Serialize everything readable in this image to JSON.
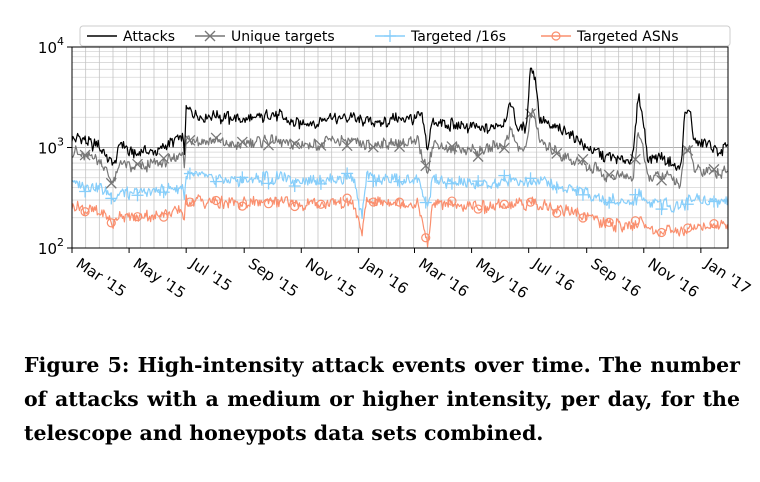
{
  "chart_data": {
    "type": "line",
    "yscale": "log",
    "ylim": [
      100,
      10000
    ],
    "x_range_days": [
      0,
      701
    ],
    "grid": true,
    "yticks": [
      {
        "value": 100,
        "base": "10",
        "exp": "2"
      },
      {
        "value": 1000,
        "base": "10",
        "exp": "3"
      },
      {
        "value": 10000,
        "base": "10",
        "exp": "4"
      }
    ],
    "xticks": [
      {
        "label": "Mar '15",
        "day": 0
      },
      {
        "label": "May '15",
        "day": 61
      },
      {
        "label": "Jul '15",
        "day": 122
      },
      {
        "label": "Sep '15",
        "day": 184
      },
      {
        "label": "Nov '15",
        "day": 245
      },
      {
        "label": "Jan '16",
        "day": 306
      },
      {
        "label": "Mar '16",
        "day": 366
      },
      {
        "label": "May '16",
        "day": 427
      },
      {
        "label": "Jul '16",
        "day": 488
      },
      {
        "label": "Sep '16",
        "day": 550
      },
      {
        "label": "Nov '16",
        "day": 611
      },
      {
        "label": "Jan '17",
        "day": 672
      }
    ],
    "legend_position": "top",
    "series": [
      {
        "name": "Attacks",
        "color": "#000000",
        "marker": "none",
        "points": [
          [
            0,
            1300
          ],
          [
            15,
            1150
          ],
          [
            30,
            1000
          ],
          [
            45,
            650
          ],
          [
            52,
            1100
          ],
          [
            60,
            900
          ],
          [
            75,
            900
          ],
          [
            90,
            950
          ],
          [
            105,
            1100
          ],
          [
            118,
            1300
          ],
          [
            120,
            900
          ],
          [
            122,
            2400
          ],
          [
            140,
            2100
          ],
          [
            160,
            2000
          ],
          [
            180,
            1900
          ],
          [
            200,
            2000
          ],
          [
            220,
            2100
          ],
          [
            240,
            1800
          ],
          [
            260,
            1700
          ],
          [
            280,
            2000
          ],
          [
            300,
            2000
          ],
          [
            315,
            1800
          ],
          [
            330,
            1800
          ],
          [
            350,
            1900
          ],
          [
            370,
            2000
          ],
          [
            375,
            1900
          ],
          [
            380,
            900
          ],
          [
            385,
            1800
          ],
          [
            400,
            1700
          ],
          [
            420,
            1600
          ],
          [
            440,
            1500
          ],
          [
            460,
            1700
          ],
          [
            470,
            2700
          ],
          [
            475,
            1600
          ],
          [
            485,
            1500
          ],
          [
            490,
            6800
          ],
          [
            495,
            5000
          ],
          [
            500,
            1800
          ],
          [
            505,
            1800
          ],
          [
            510,
            1600
          ],
          [
            530,
            1400
          ],
          [
            550,
            1000
          ],
          [
            565,
            900
          ],
          [
            570,
            750
          ],
          [
            575,
            800
          ],
          [
            590,
            750
          ],
          [
            600,
            850
          ],
          [
            605,
            3300
          ],
          [
            610,
            2000
          ],
          [
            615,
            800
          ],
          [
            630,
            800
          ],
          [
            640,
            700
          ],
          [
            650,
            600
          ],
          [
            655,
            2100
          ],
          [
            660,
            2300
          ],
          [
            665,
            1100
          ],
          [
            680,
            1100
          ],
          [
            690,
            900
          ],
          [
            701,
            1000
          ]
        ]
      },
      {
        "name": "Unique targets",
        "color": "#777777",
        "marker": "x",
        "points": [
          [
            0,
            900
          ],
          [
            15,
            850
          ],
          [
            30,
            750
          ],
          [
            45,
            450
          ],
          [
            52,
            700
          ],
          [
            60,
            620
          ],
          [
            75,
            630
          ],
          [
            90,
            680
          ],
          [
            105,
            750
          ],
          [
            118,
            900
          ],
          [
            120,
            650
          ],
          [
            122,
            1200
          ],
          [
            140,
            1150
          ],
          [
            160,
            1100
          ],
          [
            180,
            1050
          ],
          [
            200,
            1150
          ],
          [
            220,
            1200
          ],
          [
            240,
            1100
          ],
          [
            260,
            1050
          ],
          [
            280,
            1150
          ],
          [
            300,
            1150
          ],
          [
            315,
            1050
          ],
          [
            330,
            1050
          ],
          [
            350,
            1100
          ],
          [
            370,
            1150
          ],
          [
            380,
            550
          ],
          [
            385,
            1050
          ],
          [
            400,
            1000
          ],
          [
            420,
            950
          ],
          [
            440,
            950
          ],
          [
            460,
            1050
          ],
          [
            470,
            1600
          ],
          [
            475,
            1000
          ],
          [
            485,
            950
          ],
          [
            490,
            2200
          ],
          [
            495,
            2000
          ],
          [
            500,
            1100
          ],
          [
            510,
            950
          ],
          [
            530,
            800
          ],
          [
            550,
            650
          ],
          [
            565,
            600
          ],
          [
            570,
            500
          ],
          [
            575,
            530
          ],
          [
            590,
            500
          ],
          [
            600,
            520
          ],
          [
            605,
            1400
          ],
          [
            610,
            1000
          ],
          [
            615,
            520
          ],
          [
            630,
            530
          ],
          [
            640,
            480
          ],
          [
            650,
            420
          ],
          [
            655,
            950
          ],
          [
            660,
            1000
          ],
          [
            665,
            600
          ],
          [
            680,
            600
          ],
          [
            690,
            550
          ],
          [
            701,
            600
          ]
        ]
      },
      {
        "name": "Targeted /16s",
        "color": "#87cefa",
        "marker": "+",
        "points": [
          [
            0,
            450
          ],
          [
            15,
            420
          ],
          [
            30,
            400
          ],
          [
            45,
            300
          ],
          [
            52,
            380
          ],
          [
            60,
            350
          ],
          [
            75,
            360
          ],
          [
            90,
            370
          ],
          [
            105,
            380
          ],
          [
            118,
            400
          ],
          [
            120,
            330
          ],
          [
            122,
            520
          ],
          [
            140,
            500
          ],
          [
            160,
            480
          ],
          [
            180,
            470
          ],
          [
            200,
            490
          ],
          [
            220,
            500
          ],
          [
            240,
            470
          ],
          [
            260,
            470
          ],
          [
            280,
            480
          ],
          [
            300,
            520
          ],
          [
            310,
            200
          ],
          [
            315,
            500
          ],
          [
            330,
            480
          ],
          [
            350,
            470
          ],
          [
            370,
            480
          ],
          [
            380,
            250
          ],
          [
            385,
            470
          ],
          [
            400,
            460
          ],
          [
            420,
            440
          ],
          [
            440,
            430
          ],
          [
            460,
            450
          ],
          [
            470,
            500
          ],
          [
            480,
            450
          ],
          [
            490,
            480
          ],
          [
            500,
            460
          ],
          [
            510,
            430
          ],
          [
            530,
            400
          ],
          [
            550,
            350
          ],
          [
            565,
            320
          ],
          [
            570,
            290
          ],
          [
            575,
            300
          ],
          [
            590,
            290
          ],
          [
            600,
            280
          ],
          [
            605,
            340
          ],
          [
            610,
            320
          ],
          [
            615,
            290
          ],
          [
            630,
            280
          ],
          [
            640,
            270
          ],
          [
            650,
            260
          ],
          [
            660,
            300
          ],
          [
            670,
            300
          ],
          [
            680,
            290
          ],
          [
            690,
            300
          ],
          [
            701,
            300
          ]
        ]
      },
      {
        "name": "Targeted ASNs",
        "color": "#fa8f6e",
        "marker": "o",
        "points": [
          [
            0,
            250
          ],
          [
            15,
            240
          ],
          [
            30,
            230
          ],
          [
            45,
            170
          ],
          [
            52,
            220
          ],
          [
            60,
            200
          ],
          [
            75,
            205
          ],
          [
            90,
            210
          ],
          [
            105,
            220
          ],
          [
            118,
            230
          ],
          [
            120,
            190
          ],
          [
            122,
            300
          ],
          [
            140,
            290
          ],
          [
            160,
            280
          ],
          [
            180,
            275
          ],
          [
            200,
            285
          ],
          [
            220,
            290
          ],
          [
            240,
            275
          ],
          [
            260,
            270
          ],
          [
            280,
            280
          ],
          [
            300,
            300
          ],
          [
            310,
            150
          ],
          [
            315,
            290
          ],
          [
            330,
            280
          ],
          [
            350,
            275
          ],
          [
            370,
            280
          ],
          [
            380,
            105
          ],
          [
            385,
            275
          ],
          [
            400,
            270
          ],
          [
            420,
            260
          ],
          [
            440,
            255
          ],
          [
            460,
            265
          ],
          [
            470,
            290
          ],
          [
            480,
            265
          ],
          [
            490,
            280
          ],
          [
            500,
            270
          ],
          [
            510,
            255
          ],
          [
            530,
            235
          ],
          [
            550,
            200
          ],
          [
            565,
            185
          ],
          [
            570,
            170
          ],
          [
            575,
            175
          ],
          [
            590,
            165
          ],
          [
            600,
            160
          ],
          [
            605,
            190
          ],
          [
            610,
            180
          ],
          [
            615,
            150
          ],
          [
            630,
            150
          ],
          [
            640,
            145
          ],
          [
            650,
            140
          ],
          [
            660,
            160
          ],
          [
            670,
            165
          ],
          [
            680,
            160
          ],
          [
            690,
            170
          ],
          [
            701,
            175
          ]
        ]
      }
    ]
  },
  "caption": "Figure 5: High-intensity attack events over time. The number of attacks with a medium or higher intensity, per day, for the telescope and honeypots data sets combined."
}
